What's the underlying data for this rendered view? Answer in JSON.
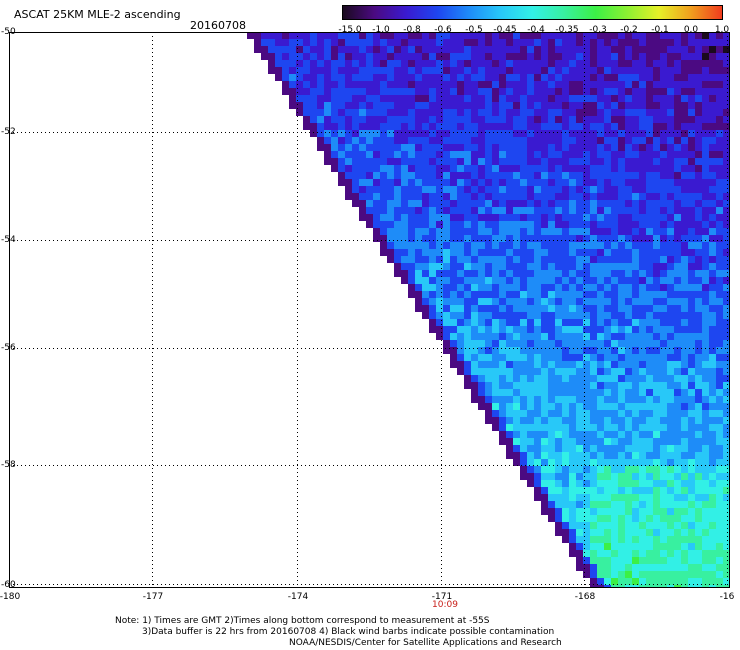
{
  "header": {
    "title": "ASCAT 25KM MLE-2 ascending",
    "date": "20160708"
  },
  "colorbar": {
    "labels": [
      "-15.0",
      "-1.0",
      "-0.8",
      "-0.6",
      "-0.5",
      "-0.45",
      "-0.4",
      "-0.35",
      "-0.3",
      "-0.2",
      "-0.1",
      "0.0",
      "1.0"
    ],
    "colors": [
      "#1a0a1e",
      "#4b0a82",
      "#3a1ad0",
      "#1e46f0",
      "#1e8cf8",
      "#28c8f8",
      "#32f0e6",
      "#38f0a0",
      "#3cf046",
      "#8cf032",
      "#e6f028",
      "#f0a01e",
      "#f03c1e"
    ]
  },
  "map": {
    "lat_labels": [
      "-50",
      "-52",
      "-54",
      "-56",
      "-58",
      "-60"
    ],
    "lon_labels": [
      "-180",
      "-177",
      "-174",
      "-171",
      "-168",
      "-16"
    ],
    "time_label": "10:09"
  },
  "notes": {
    "line1": "Note: 1) Times are GMT 2)Times along bottom correspond to measurement at -55S",
    "line2": "3)Data buffer is 22 hrs from 20160708 4) Black wind barbs indicate possible contamination",
    "line3": "NOAA/NESDIS/Center for Satellite Applications and Research"
  }
}
